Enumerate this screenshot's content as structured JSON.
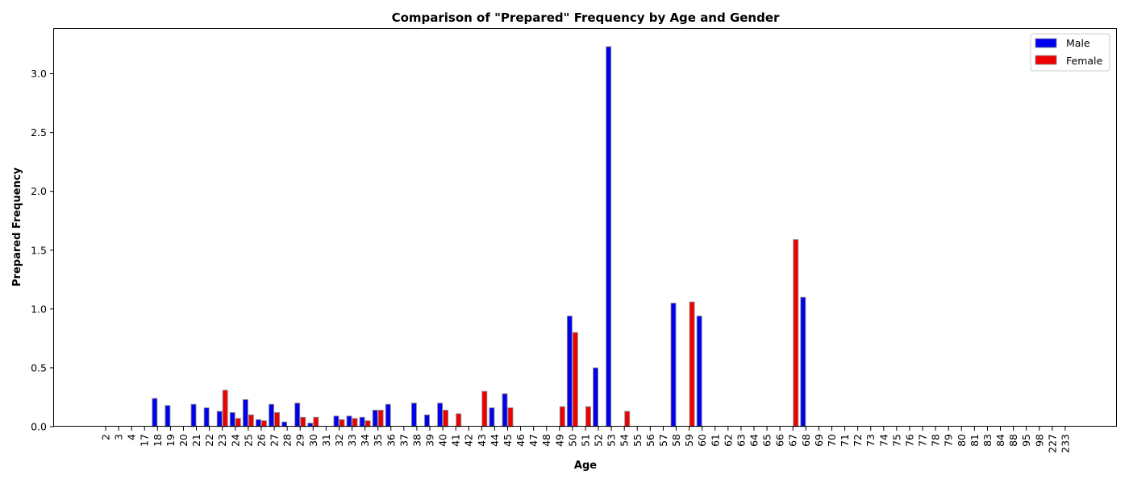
{
  "chart_data": {
    "type": "bar",
    "title": "Comparison of \"Prepared\" Frequency by Age and Gender",
    "xlabel": "Age",
    "ylabel": "Prepared Frequency",
    "ylim": [
      0,
      3.38
    ],
    "yticks": [
      "0.0",
      "0.5",
      "1.0",
      "1.5",
      "2.0",
      "2.5",
      "3.0"
    ],
    "grid": false,
    "legend_position": "top-right",
    "categories": [
      "2",
      "3",
      "4",
      "17",
      "18",
      "19",
      "20",
      "21",
      "22",
      "23",
      "24",
      "25",
      "26",
      "27",
      "28",
      "29",
      "30",
      "31",
      "32",
      "33",
      "34",
      "35",
      "36",
      "37",
      "38",
      "39",
      "40",
      "41",
      "42",
      "43",
      "44",
      "45",
      "46",
      "47",
      "48",
      "49",
      "50",
      "51",
      "52",
      "53",
      "54",
      "55",
      "56",
      "57",
      "58",
      "59",
      "60",
      "61",
      "62",
      "63",
      "64",
      "65",
      "66",
      "67",
      "68",
      "69",
      "70",
      "71",
      "72",
      "73",
      "74",
      "75",
      "76",
      "77",
      "78",
      "79",
      "80",
      "81",
      "83",
      "84",
      "88",
      "95",
      "98",
      "227",
      "233"
    ],
    "series": [
      {
        "name": "Male",
        "color": "#0000ee",
        "values": [
          0,
          0,
          0,
          0,
          0.24,
          0.18,
          0,
          0.19,
          0.16,
          0.13,
          0.12,
          0.23,
          0.06,
          0.19,
          0.04,
          0.2,
          0.03,
          0,
          0.09,
          0.09,
          0.08,
          0.14,
          0.19,
          0,
          0.2,
          0.1,
          0.2,
          0,
          0,
          0,
          0.16,
          0.28,
          0,
          0,
          0,
          0,
          0.94,
          0,
          0.5,
          3.23,
          0,
          0,
          0,
          0,
          1.05,
          0,
          0.94,
          0,
          0,
          0,
          0,
          0,
          0,
          0,
          1.1,
          0,
          0,
          0,
          0,
          0,
          0,
          0,
          0,
          0,
          0,
          0,
          0,
          0,
          0,
          0,
          0,
          0,
          0,
          0,
          0
        ]
      },
      {
        "name": "Female",
        "color": "#ee0000",
        "values": [
          0,
          0,
          0,
          0,
          0,
          0,
          0,
          0,
          0,
          0.31,
          0.07,
          0.1,
          0.05,
          0.12,
          0,
          0.08,
          0.08,
          0,
          0.06,
          0.07,
          0.05,
          0.14,
          0,
          0,
          0,
          0,
          0.14,
          0.11,
          0,
          0.3,
          0,
          0.16,
          0,
          0,
          0,
          0.17,
          0.8,
          0.17,
          0,
          0,
          0.13,
          0,
          0,
          0,
          0,
          1.06,
          0,
          0,
          0,
          0,
          0,
          0,
          0,
          1.59,
          0,
          0,
          0,
          0,
          0,
          0,
          0,
          0,
          0,
          0,
          0,
          0,
          0,
          0,
          0,
          0,
          0,
          0,
          0,
          0,
          0
        ]
      }
    ]
  }
}
